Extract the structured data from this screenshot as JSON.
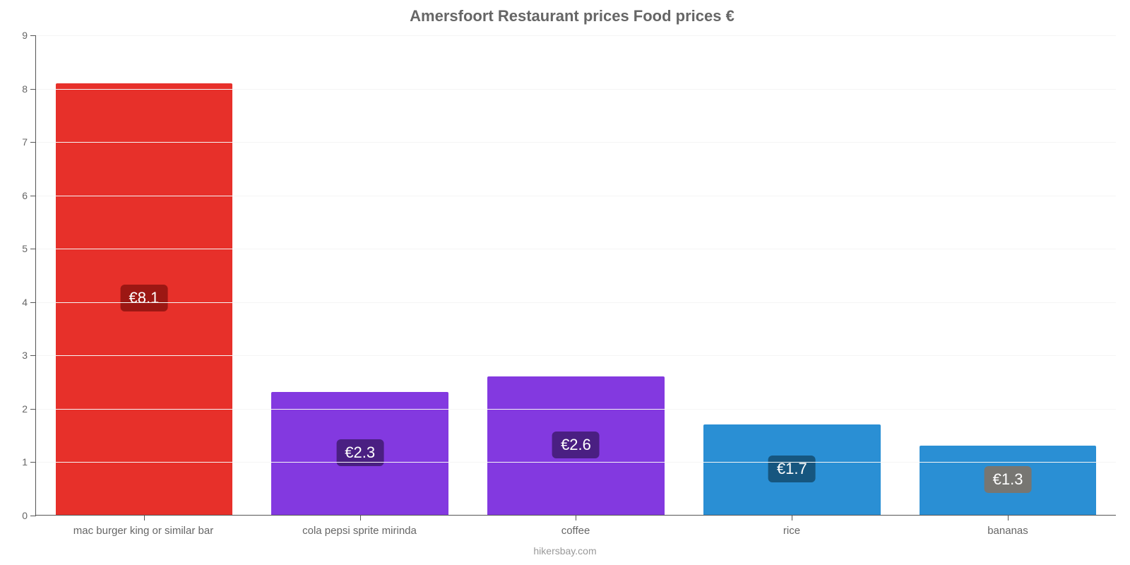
{
  "chart": {
    "type": "bar",
    "title": "Amersfoort Restaurant prices Food prices €",
    "title_fontsize": 22,
    "title_color": "#666666",
    "credit": "hikersbay.com",
    "credit_color": "#999999",
    "background_color": "#ffffff",
    "grid_color": "#f5f5f5",
    "axis_color": "#555555",
    "label_color": "#666666",
    "label_fontsize": 15,
    "ylim": [
      0,
      9
    ],
    "ytick_step": 1,
    "yticks": [
      "0",
      "1",
      "2",
      "3",
      "4",
      "5",
      "6",
      "7",
      "8",
      "9"
    ],
    "bar_width": 0.82,
    "categories": [
      "mac burger king or similar bar",
      "cola pepsi sprite mirinda",
      "coffee",
      "rice",
      "bananas"
    ],
    "values": [
      8.1,
      2.3,
      2.6,
      1.7,
      1.3
    ],
    "value_labels": [
      "€8.1",
      "€2.3",
      "€2.6",
      "€1.7",
      "€1.3"
    ],
    "bar_colors": [
      "#e7302a",
      "#8339e0",
      "#8339e0",
      "#2a8fd4",
      "#2a8fd4"
    ],
    "badge_colors": [
      "#9c1713",
      "#4a1f82",
      "#4a1f82",
      "#16567f",
      "#777672"
    ],
    "badge_fontsize": 22,
    "badge_text_color": "#ffffff"
  }
}
